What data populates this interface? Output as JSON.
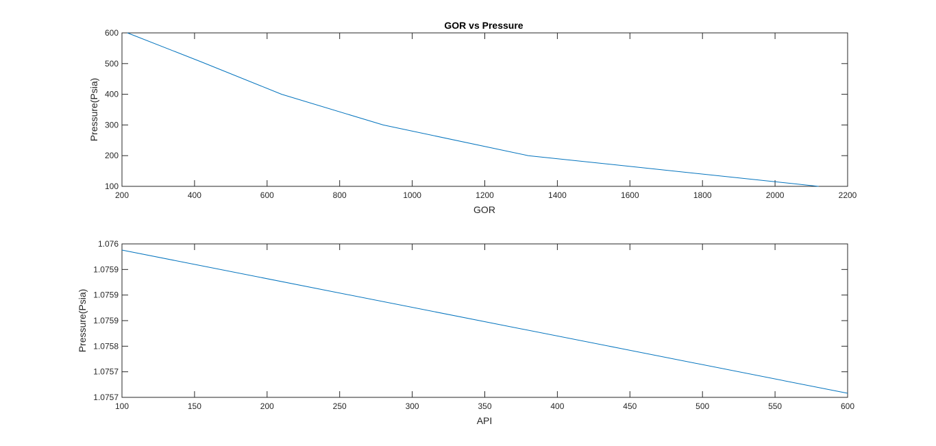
{
  "chart_data": [
    {
      "type": "line",
      "title": "GOR vs Pressure",
      "xlabel": "GOR",
      "ylabel": "Pressure(Psia)",
      "xlim": [
        200,
        2200
      ],
      "ylim": [
        100,
        600
      ],
      "xticks": [
        "200",
        "400",
        "600",
        "800",
        "1000",
        "1200",
        "1400",
        "1600",
        "1800",
        "2000",
        "2200"
      ],
      "yticks": [
        "100",
        "200",
        "300",
        "400",
        "500",
        "600"
      ],
      "grid": false,
      "series": [
        {
          "color": "#0072bd",
          "points": [
            {
              "x": 2120,
              "y": 100
            },
            {
              "x": 1320,
              "y": 200
            },
            {
              "x": 920,
              "y": 300
            },
            {
              "x": 640,
              "y": 400
            },
            {
              "x": 420,
              "y": 505
            },
            {
              "x": 215,
              "y": 600
            }
          ]
        }
      ]
    },
    {
      "type": "line",
      "title": "",
      "xlabel": "API",
      "ylabel": "Pressure(Psia)",
      "xlim": [
        100,
        600
      ],
      "ylim": [
        1.07567,
        1.07597
      ],
      "xticks": [
        "100",
        "150",
        "200",
        "250",
        "300",
        "350",
        "400",
        "450",
        "500",
        "550",
        "600"
      ],
      "yticks": [
        "1.0757",
        "1.0757",
        "1.0758",
        "1.0759",
        "1.0759",
        "1.0759",
        "1.076"
      ],
      "grid": false,
      "series": [
        {
          "color": "#0072bd",
          "points": [
            {
              "x": 100,
              "y": 1.075958
            },
            {
              "x": 600,
              "y": 1.075678
            }
          ]
        }
      ]
    }
  ]
}
